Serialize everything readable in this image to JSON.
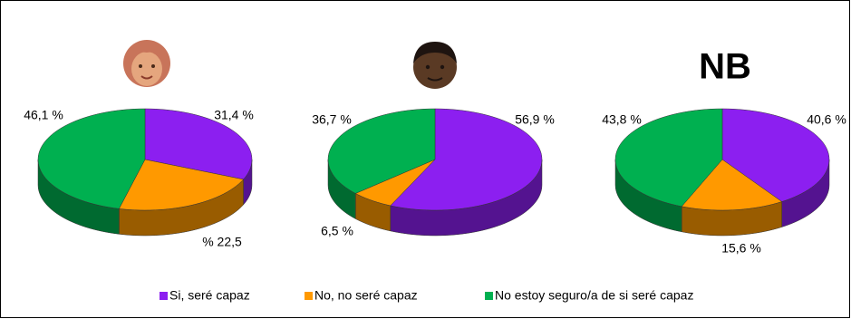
{
  "chart_data": [
    {
      "type": "pie",
      "categories": [
        "Si, seré capaz",
        "No, no seré capaz",
        "No estoy seguro/a de si seré capaz"
      ],
      "colors": [
        "#8c1ff0",
        "#ff9900",
        "#00b050"
      ],
      "values": [
        31.4,
        22.5,
        46.1
      ],
      "value_labels": [
        "31,4 %",
        "% 22,5",
        "46,1 %"
      ]
    },
    {
      "type": "pie",
      "values": [
        56.9,
        6.5,
        36.7
      ],
      "value_labels": [
        "56,9 %",
        "6,5 %",
        "36,7 %"
      ]
    },
    {
      "type": "pie",
      "title": "NB",
      "values": [
        40.6,
        15.6,
        43.8
      ],
      "value_labels": [
        "40,6 %",
        "15,6 %",
        "43,8 %"
      ]
    }
  ]
}
